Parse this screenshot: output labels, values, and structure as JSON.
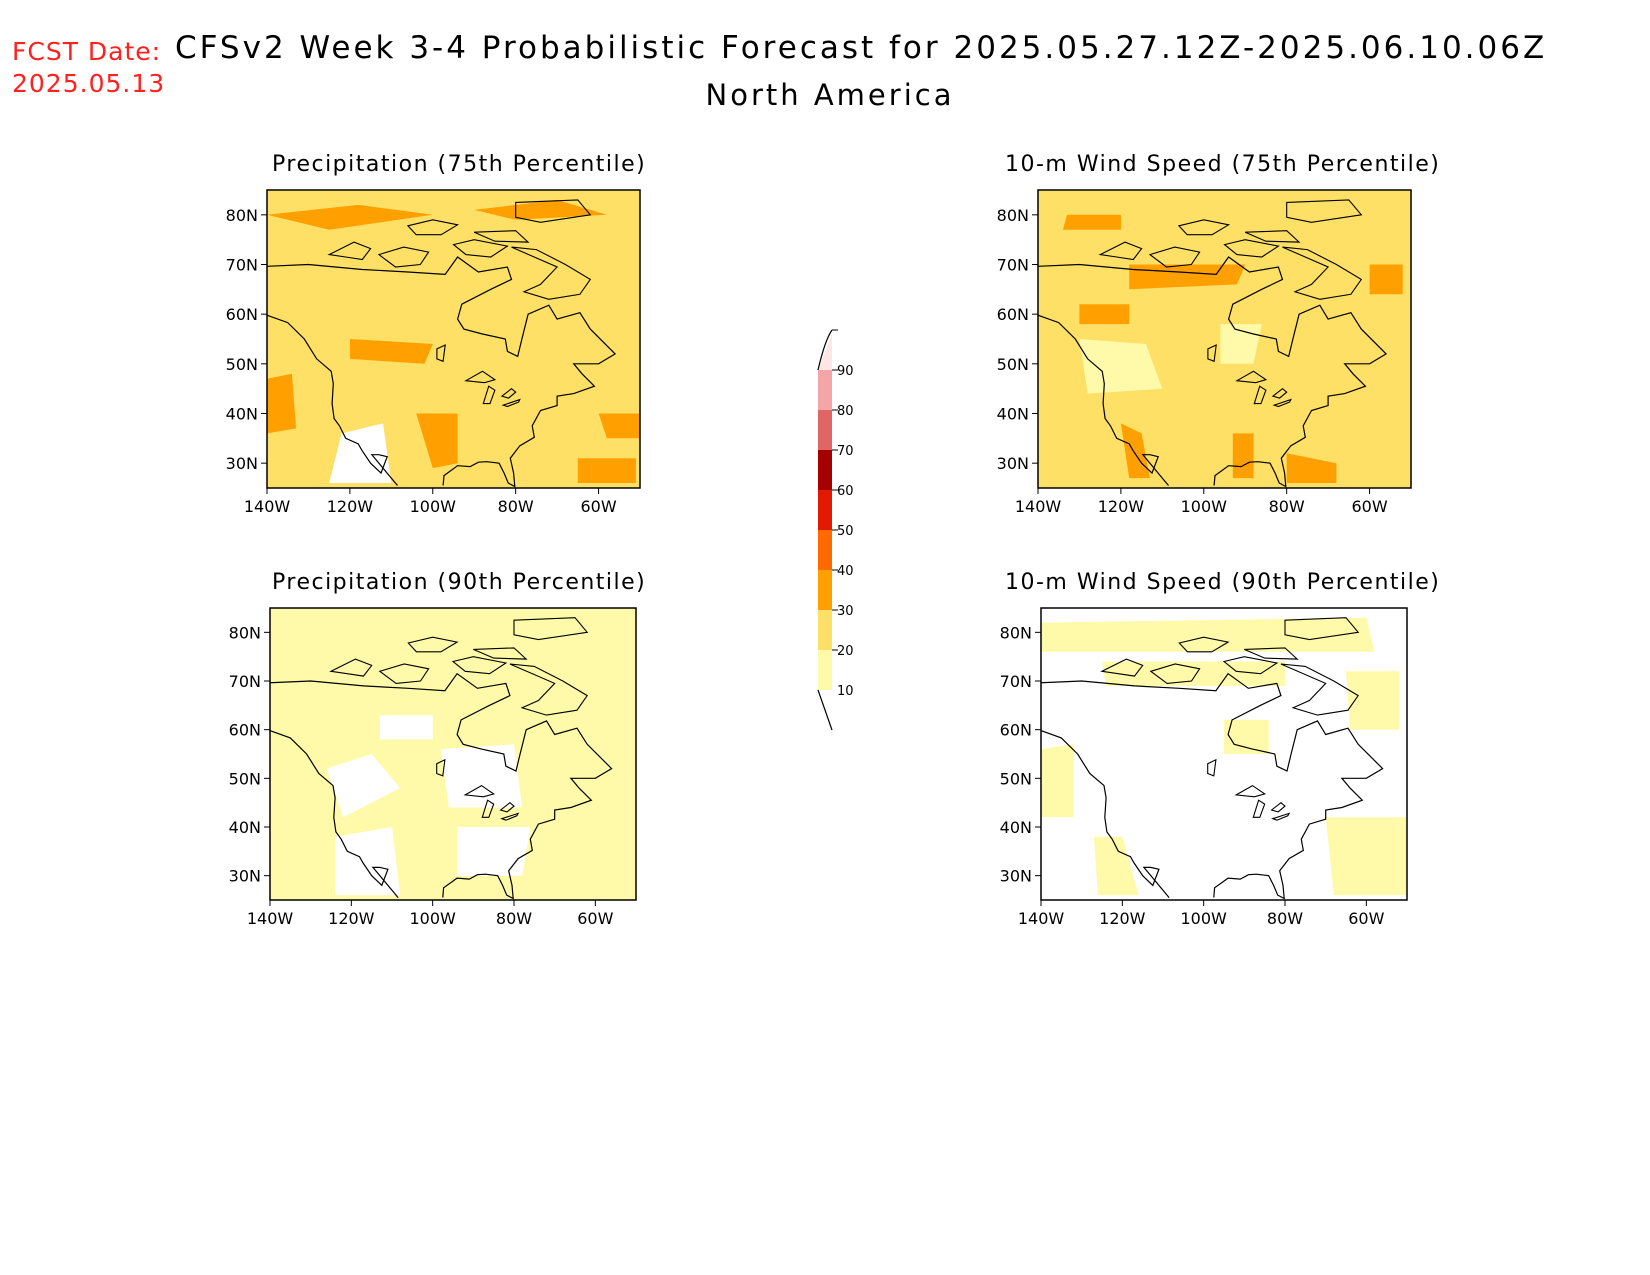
{
  "header": {
    "fcst_label": "FCST Date:",
    "fcst_date": "2025.05.13",
    "title": "CFSv2 Week 3-4 Probabilistic Forecast for 2025.05.27.12Z-2025.06.10.06Z",
    "subtitle": "North America"
  },
  "map_axes": {
    "lon_labels": [
      "140W",
      "120W",
      "100W",
      "80W",
      "60W"
    ],
    "lat_labels": [
      "80N",
      "70N",
      "60N",
      "50N",
      "40N",
      "30N"
    ],
    "lon_values": [
      -140,
      -120,
      -100,
      -80,
      -60
    ],
    "lat_values": [
      80,
      70,
      60,
      50,
      40,
      30
    ],
    "lon_range": [
      -140,
      -50
    ],
    "lat_range": [
      25,
      85
    ]
  },
  "panels": [
    {
      "id": "precip-75",
      "title": "Precipitation (75th Percentile)",
      "dominant_category": "20-30",
      "secondary_category": "30-40"
    },
    {
      "id": "wind-75",
      "title": "10-m Wind Speed (75th Percentile)",
      "dominant_category": "20-30",
      "secondary_category": "30-40"
    },
    {
      "id": "precip-90",
      "title": "Precipitation (90th Percentile)",
      "dominant_category": "10-20",
      "secondary_category": "<10"
    },
    {
      "id": "wind-90",
      "title": "10-m Wind Speed (90th Percentile)",
      "dominant_category": "<10",
      "secondary_category": "10-20"
    }
  ],
  "colorbar": {
    "labels": [
      "10",
      "20",
      "30",
      "40",
      "50",
      "60",
      "70",
      "80",
      "90"
    ],
    "colors": [
      "#fffaaa",
      "#ffe066",
      "#ffa000",
      "#ff6a00",
      "#e21800",
      "#a50000",
      "#e06666",
      "#f4a6a6",
      "#ffe6e6"
    ]
  }
}
